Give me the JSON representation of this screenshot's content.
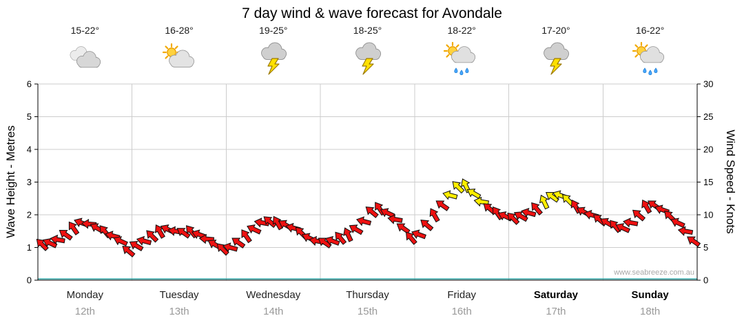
{
  "title": "7 day wind & wave forecast for Avondale",
  "watermark": "www.seabreeze.com.au",
  "axes": {
    "left_label": "Wave Height - Metres",
    "right_label": "Wind Speed - Knots",
    "left_ticks": [
      0,
      1,
      2,
      3,
      4,
      5,
      6
    ],
    "right_ticks": [
      0,
      5,
      10,
      15,
      20,
      25,
      30
    ]
  },
  "days": [
    {
      "name": "Monday",
      "date": "12th",
      "temp": "15-22°",
      "icon": "cloudy",
      "bold": false
    },
    {
      "name": "Tuesday",
      "date": "13th",
      "temp": "16-28°",
      "icon": "partly-sunny",
      "bold": false
    },
    {
      "name": "Wednesday",
      "date": "14th",
      "temp": "19-25°",
      "icon": "storm",
      "bold": false
    },
    {
      "name": "Thursday",
      "date": "15th",
      "temp": "18-25°",
      "icon": "storm",
      "bold": false
    },
    {
      "name": "Friday",
      "date": "16th",
      "temp": "18-22°",
      "icon": "sun-showers",
      "bold": false
    },
    {
      "name": "Saturday",
      "date": "17th",
      "temp": "17-20°",
      "icon": "storm",
      "bold": true
    },
    {
      "name": "Sunday",
      "date": "18th",
      "temp": "16-22°",
      "icon": "sun-showers",
      "bold": true
    }
  ],
  "chart_data": {
    "type": "scatter",
    "marker": "wind-direction-arrow",
    "title": "7 day wind & wave forecast for Avondale",
    "xlabel": "",
    "ylabel_left": "Wave Height - Metres",
    "ylabel_right": "Wind Speed - Knots",
    "ylim_left": [
      0,
      6
    ],
    "ylim_right": [
      0,
      30
    ],
    "grid": true,
    "legend": false,
    "x_categories": [
      "Monday 12th",
      "Tuesday 13th",
      "Wednesday 14th",
      "Thursday 15th",
      "Friday 16th",
      "Saturday 17th",
      "Sunday 18th"
    ],
    "points_per_day": 12,
    "wind_knots": [
      5.5,
      5.7,
      6.2,
      7.0,
      8.0,
      8.8,
      8.6,
      8.0,
      7.5,
      6.8,
      6.0,
      4.5,
      5.3,
      6.0,
      6.8,
      7.5,
      7.8,
      7.5,
      7.3,
      7.5,
      7.0,
      6.3,
      5.5,
      4.8,
      5.0,
      5.8,
      6.8,
      7.8,
      8.8,
      9.0,
      8.8,
      8.5,
      8.0,
      7.3,
      6.5,
      6.0,
      5.8,
      6.0,
      6.5,
      7.0,
      7.8,
      9.0,
      10.5,
      11.0,
      10.3,
      9.3,
      8.0,
      6.5,
      7.0,
      8.5,
      10.0,
      11.5,
      13.0,
      14.3,
      14.5,
      13.3,
      12.0,
      11.0,
      10.3,
      9.8,
      9.5,
      9.8,
      10.3,
      11.0,
      12.0,
      12.8,
      13.0,
      12.3,
      11.3,
      10.5,
      10.0,
      9.3,
      8.8,
      8.3,
      8.0,
      8.8,
      10.0,
      11.3,
      11.5,
      10.8,
      9.8,
      8.8,
      7.5,
      6.0
    ],
    "wind_direction_deg": [
      225,
      205,
      190,
      215,
      235,
      200,
      185,
      210,
      230,
      195,
      205,
      220,
      210,
      195,
      225,
      240,
      205,
      190,
      215,
      230,
      200,
      185,
      210,
      225,
      195,
      215,
      235,
      205,
      190,
      220,
      240,
      210,
      195,
      225,
      205,
      190,
      215,
      200,
      230,
      245,
      210,
      195,
      220,
      235,
      205,
      190,
      215,
      230,
      200,
      220,
      240,
      215,
      195,
      225,
      245,
      210,
      190,
      220,
      235,
      205,
      225,
      210,
      195,
      230,
      245,
      215,
      200,
      225,
      240,
      210,
      195,
      220,
      210,
      230,
      205,
      190,
      220,
      240,
      215,
      200,
      225,
      205,
      190,
      215
    ],
    "colors": {
      "arrow_normal": "#ee1111",
      "arrow_strong": "#ffee00",
      "strong_threshold_knots": 12,
      "grid": "#cccccc",
      "axis": "#000000",
      "baseline_teal": "#2aa4a4"
    }
  }
}
